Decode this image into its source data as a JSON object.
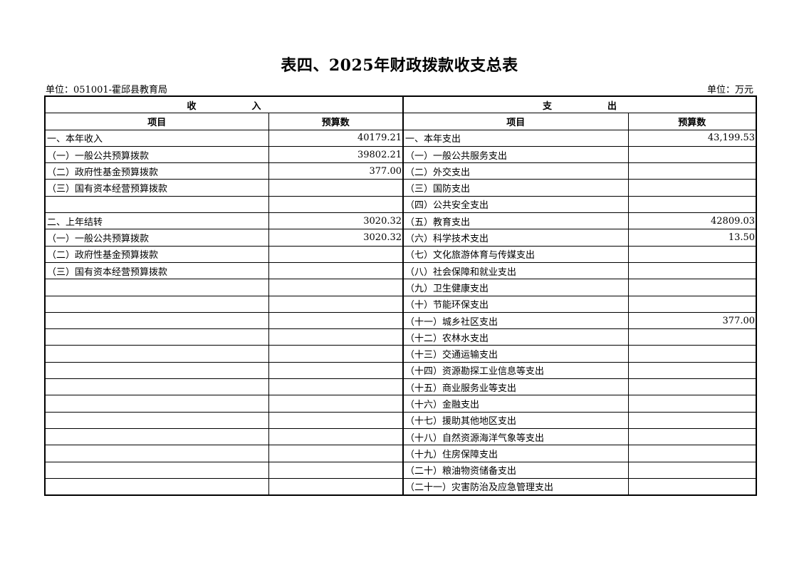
{
  "title": "表四、2025年财政拨款收支总表",
  "unit_left": "单位：051001-霍邱县教育局",
  "unit_right": "单位：万元",
  "headers": {
    "income": "收　　　　　　入",
    "expense": "支　　　　　　出",
    "item": "项目",
    "budget": "预算数"
  },
  "rows": [
    {
      "income_item": "一、本年收入",
      "income_value": "40179.21",
      "expense_item": "一、本年支出",
      "expense_value": "43,199.53"
    },
    {
      "income_item": "（一）一般公共预算拨款",
      "income_value": "39802.21",
      "expense_item": "（一）一般公共服务支出",
      "expense_value": ""
    },
    {
      "income_item": "（二）政府性基金预算拨款",
      "income_value": "377.00",
      "expense_item": "（二）外交支出",
      "expense_value": ""
    },
    {
      "income_item": "（三）国有资本经营预算拨款",
      "income_value": "",
      "expense_item": "（三）国防支出",
      "expense_value": ""
    },
    {
      "income_item": "",
      "income_value": "",
      "expense_item": "（四）公共安全支出",
      "expense_value": ""
    },
    {
      "income_item": "二、上年结转",
      "income_value": "3020.32",
      "expense_item": "（五）教育支出",
      "expense_value": "42809.03"
    },
    {
      "income_item": "（一）一般公共预算拨款",
      "income_value": "3020.32",
      "expense_item": "（六）科学技术支出",
      "expense_value": "13.50"
    },
    {
      "income_item": "（二）政府性基金预算拨款",
      "income_value": "",
      "expense_item": "（七）文化旅游体育与传媒支出",
      "expense_value": ""
    },
    {
      "income_item": "（三）国有资本经营预算拨款",
      "income_value": "",
      "expense_item": "（八）社会保障和就业支出",
      "expense_value": ""
    },
    {
      "income_item": "",
      "income_value": "",
      "expense_item": "（九）卫生健康支出",
      "expense_value": ""
    },
    {
      "income_item": "",
      "income_value": "",
      "expense_item": "（十）节能环保支出",
      "expense_value": ""
    },
    {
      "income_item": "",
      "income_value": "",
      "expense_item": "（十一）城乡社区支出",
      "expense_value": "377.00"
    },
    {
      "income_item": "",
      "income_value": "",
      "expense_item": "（十二）农林水支出",
      "expense_value": ""
    },
    {
      "income_item": "",
      "income_value": "",
      "expense_item": "（十三）交通运输支出",
      "expense_value": ""
    },
    {
      "income_item": "",
      "income_value": "",
      "expense_item": "（十四）资源勘探工业信息等支出",
      "expense_value": ""
    },
    {
      "income_item": "",
      "income_value": "",
      "expense_item": "（十五）商业服务业等支出",
      "expense_value": ""
    },
    {
      "income_item": "",
      "income_value": "",
      "expense_item": "（十六）金融支出",
      "expense_value": ""
    },
    {
      "income_item": "",
      "income_value": "",
      "expense_item": "（十七）援助其他地区支出",
      "expense_value": ""
    },
    {
      "income_item": "",
      "income_value": "",
      "expense_item": "（十八）自然资源海洋气象等支出",
      "expense_value": ""
    },
    {
      "income_item": "",
      "income_value": "",
      "expense_item": "（十九）住房保障支出",
      "expense_value": ""
    },
    {
      "income_item": "",
      "income_value": "",
      "expense_item": "（二十）粮油物资储备支出",
      "expense_value": ""
    },
    {
      "income_item": "",
      "income_value": "",
      "expense_item": "（二十一）灾害防治及应急管理支出",
      "expense_value": ""
    }
  ]
}
